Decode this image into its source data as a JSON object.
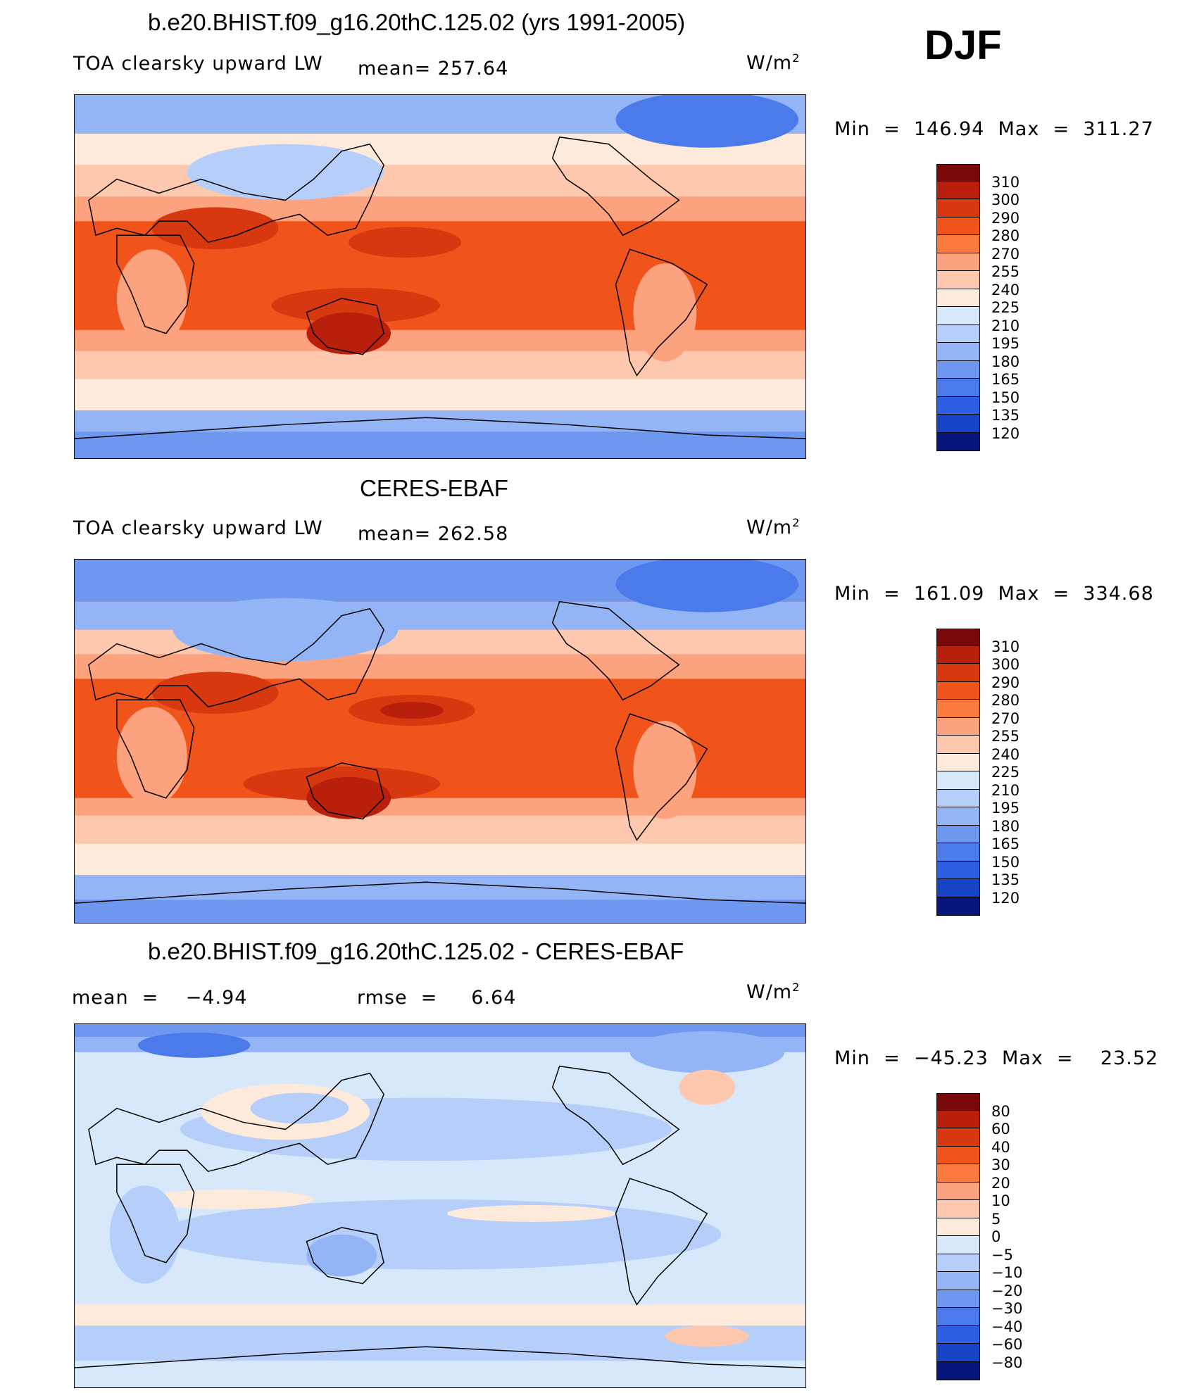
{
  "season": "DJF",
  "colors": {
    "abs_palette": [
      "#7a0a0a",
      "#b81f0c",
      "#d8380f",
      "#f0541a",
      "#fb7a40",
      "#fca27f",
      "#fdc8ad",
      "#feeadb",
      "#d8e8fb",
      "#b5cffa",
      "#93b5f6",
      "#6e98f0",
      "#4b7bea",
      "#2e5ee3",
      "#1644c7",
      "#0a2a9e",
      "#06167a"
    ],
    "diff_palette": [
      "#7a0a0a",
      "#b81f0c",
      "#d8380f",
      "#f0541a",
      "#fb7a40",
      "#fca27f",
      "#fdc8ad",
      "#feeadb",
      "#d8e8fb",
      "#b5cffa",
      "#93b5f6",
      "#6e98f0",
      "#4b7bea",
      "#2e5ee3",
      "#1644c7",
      "#0a2a9e",
      "#06167a"
    ]
  },
  "panels": [
    {
      "title": "b.e20.BHIST.f09_g16.20thC.125.02 (yrs 1991-2005)",
      "left_label": "TOA clearsky upward LW",
      "mean_label": "mean= 257.64",
      "units": "W/m",
      "units_sup": "2",
      "minmax": "Min  =  146.94  Max  =  311.27",
      "colorbar_ticks": [
        "310",
        "300",
        "290",
        "280",
        "270",
        "255",
        "240",
        "225",
        "210",
        "195",
        "180",
        "165",
        "150",
        "135",
        "120"
      ]
    },
    {
      "title": "CERES-EBAF",
      "left_label": "TOA clearsky upward LW",
      "mean_label": "mean= 262.58",
      "units": "W/m",
      "units_sup": "2",
      "minmax": "Min  =  161.09  Max  =  334.68",
      "colorbar_ticks": [
        "310",
        "300",
        "290",
        "280",
        "270",
        "255",
        "240",
        "225",
        "210",
        "195",
        "180",
        "165",
        "150",
        "135",
        "120"
      ]
    },
    {
      "title": "b.e20.BHIST.f09_g16.20thC.125.02 - CERES-EBAF",
      "left_label": "mean  =    −4.94",
      "mean_label": "rmse  =     6.64",
      "units": "W/m",
      "units_sup": "2",
      "minmax": "Min  =  −45.23  Max  =    23.52",
      "colorbar_ticks": [
        "80",
        "60",
        "40",
        "30",
        "20",
        "10",
        "5",
        "0",
        "−5",
        "−10",
        "−20",
        "−30",
        "−40",
        "−60",
        "−80"
      ]
    }
  ]
}
